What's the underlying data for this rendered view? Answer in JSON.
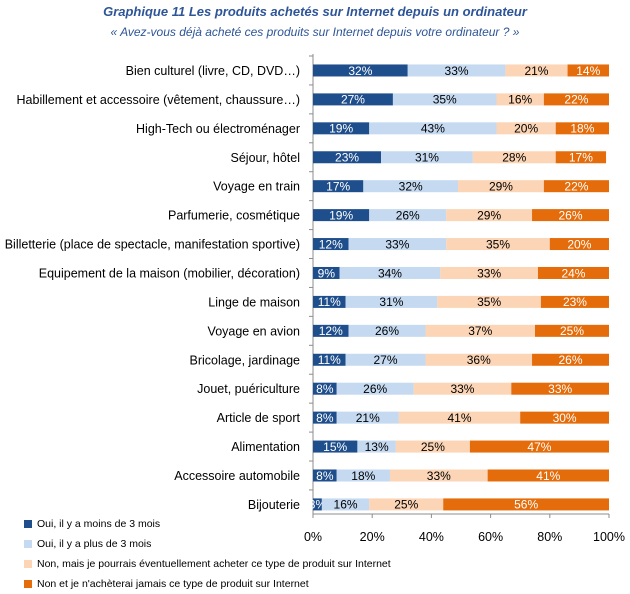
{
  "chart_data": {
    "type": "bar",
    "orientation": "horizontal",
    "stacked": "percent",
    "title": "Graphique 11 Les produits achetés sur Internet depuis un ordinateur",
    "subtitle": "« Avez-vous déjà acheté ces produits sur Internet depuis votre ordinateur ? »",
    "xlim": [
      0,
      100
    ],
    "xticks": [
      "0%",
      "20%",
      "40%",
      "60%",
      "80%",
      "100%"
    ],
    "categories": [
      "Bien culturel (livre, CD, DVD…)",
      "Habillement et accessoire (vêtement, chaussure…)",
      "High-Tech ou électroménager",
      "Séjour, hôtel",
      "Voyage en train",
      "Parfumerie, cosmétique",
      "Billetterie (place de spectacle, manifestation sportive)",
      "Equipement de la maison (mobilier, décoration)",
      "Linge de maison",
      "Voyage en avion",
      "Bricolage, jardinage",
      "Jouet, puériculture",
      "Article de sport",
      "Alimentation",
      "Accessoire automobile",
      "Bijouterie"
    ],
    "series": [
      {
        "name": "Oui, il y a moins de 3 mois",
        "color": "#1f4e8c",
        "label_color": "#ffffff",
        "values": [
          32,
          27,
          19,
          23,
          17,
          19,
          12,
          9,
          11,
          12,
          11,
          8,
          8,
          15,
          8,
          3
        ]
      },
      {
        "name": "Oui, il y a plus de 3 mois",
        "color": "#c5d9f1",
        "label_color": "#000000",
        "values": [
          33,
          35,
          43,
          31,
          32,
          26,
          33,
          34,
          31,
          26,
          27,
          26,
          21,
          13,
          18,
          16
        ]
      },
      {
        "name": "Non, mais je pourrais éventuellement acheter ce type de produit sur Internet",
        "color": "#fbd5b5",
        "label_color": "#000000",
        "values": [
          21,
          16,
          20,
          28,
          29,
          29,
          35,
          33,
          35,
          37,
          36,
          33,
          41,
          25,
          33,
          25
        ]
      },
      {
        "name": "Non et je n'achèterai jamais ce type de produit sur Internet",
        "color": "#e46c0a",
        "label_color": "#ffffff",
        "values": [
          14,
          22,
          18,
          17,
          22,
          26,
          20,
          24,
          23,
          25,
          26,
          33,
          30,
          47,
          41,
          56
        ]
      }
    ],
    "legend_position": "bottom-left"
  }
}
